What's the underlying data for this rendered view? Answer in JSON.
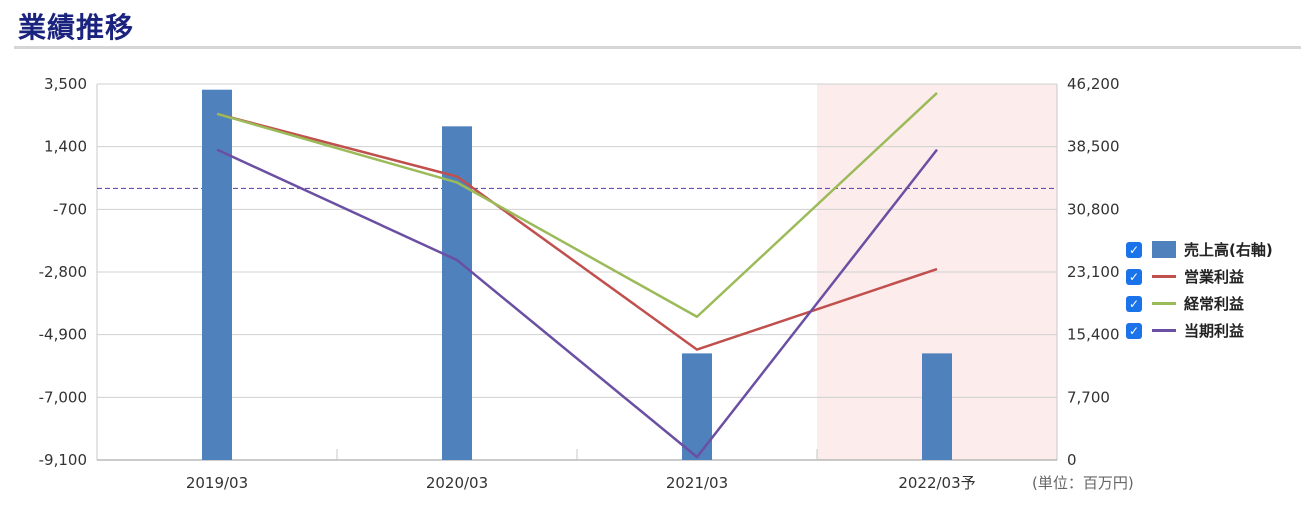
{
  "page_title": "業績推移",
  "unit_label": "(単位：百万円)",
  "colors": {
    "bar": "#4f81bd",
    "operating": "#c0504d",
    "ordinary": "#9bbb59",
    "net": "#6b4fa3",
    "forecast_bg": "#fdecec",
    "zero_line": "#6b4fa3",
    "title": "#1a237e"
  },
  "legend": [
    {
      "label": "売上高(右軸)",
      "checked": true,
      "kind": "bar",
      "color": "#4f81bd"
    },
    {
      "label": "営業利益",
      "checked": true,
      "kind": "line",
      "color": "#c0504d"
    },
    {
      "label": "経常利益",
      "checked": true,
      "kind": "line",
      "color": "#9bbb59"
    },
    {
      "label": "当期利益",
      "checked": true,
      "kind": "line",
      "color": "#6b4fa3"
    }
  ],
  "chart_data": {
    "type": "bar",
    "title": "業績推移",
    "categories": [
      "2019/03",
      "2020/03",
      "2021/03",
      "2022/03予"
    ],
    "forecast_category": "2022/03予",
    "left_axis": {
      "min": -9100,
      "max": 3500,
      "ticks": [
        "3,500",
        "1,400",
        "-700",
        "-2,800",
        "-4,900",
        "-7,000",
        "-9,100"
      ],
      "tick_values": [
        3500,
        1400,
        -700,
        -2800,
        -4900,
        -7000,
        -9100
      ]
    },
    "right_axis": {
      "min": 0,
      "max": 46200,
      "ticks": [
        "46,200",
        "38,500",
        "30,800",
        "23,100",
        "15,400",
        "7,700",
        "0"
      ],
      "tick_values": [
        46200,
        38500,
        30800,
        23100,
        15400,
        7700,
        0
      ]
    },
    "series": [
      {
        "name": "売上高(右軸)",
        "type": "bar",
        "axis": "right",
        "values": [
          45500,
          41000,
          13100,
          13100
        ]
      },
      {
        "name": "営業利益",
        "type": "line",
        "axis": "left",
        "values": [
          2500,
          400,
          -5400,
          -2700
        ]
      },
      {
        "name": "経常利益",
        "type": "line",
        "axis": "left",
        "values": [
          2500,
          200,
          -4300,
          3200
        ]
      },
      {
        "name": "当期利益",
        "type": "line",
        "axis": "left",
        "values": [
          1300,
          -2400,
          -9000,
          1300
        ]
      }
    ],
    "grid": true,
    "legend_position": "right"
  }
}
